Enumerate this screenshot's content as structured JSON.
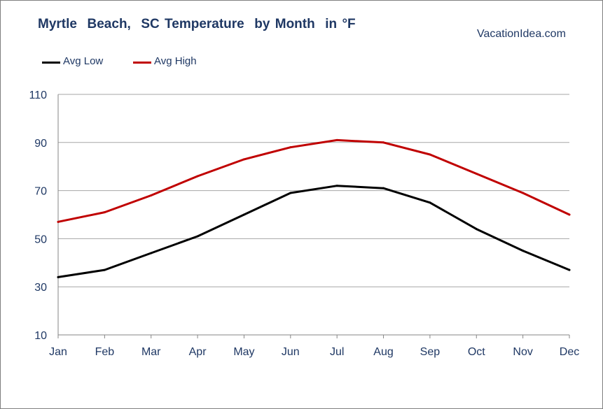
{
  "title": "Myrtle  Beach,  SC Temperature  by Month  in °F",
  "source": "VacationIdea.com",
  "colors": {
    "avg_low": "#000000",
    "avg_high": "#c00000",
    "text": "#1f3864",
    "grid": "#a6a6a6"
  },
  "chart_data": {
    "type": "line",
    "title": "Myrtle  Beach,  SC Temperature  by Month  in °F",
    "xlabel": "",
    "ylabel": "",
    "categories": [
      "Jan",
      "Feb",
      "Mar",
      "Apr",
      "May",
      "Jun",
      "Jul",
      "Aug",
      "Sep",
      "Oct",
      "Nov",
      "Dec"
    ],
    "series": [
      {
        "name": "Avg Low",
        "color": "#000000",
        "values": [
          34,
          37,
          44,
          51,
          60,
          69,
          72,
          71,
          65,
          54,
          45,
          37
        ]
      },
      {
        "name": "Avg High",
        "color": "#c00000",
        "values": [
          57,
          61,
          68,
          76,
          83,
          88,
          91,
          90,
          85,
          77,
          69,
          60
        ]
      }
    ],
    "ylim": [
      10,
      110
    ],
    "yticks": [
      110,
      90,
      70,
      50,
      30,
      10
    ],
    "grid": true,
    "legend_position": "top-left"
  }
}
